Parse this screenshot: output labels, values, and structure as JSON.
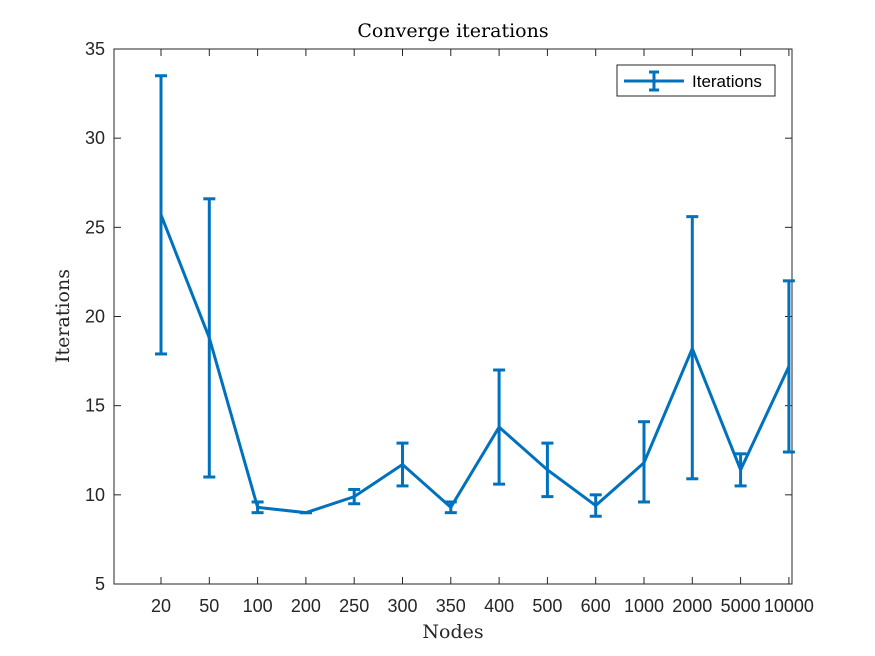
{
  "chart_data": {
    "type": "line",
    "title": "Converge iterations",
    "xlabel": "Nodes",
    "ylabel": "Iterations",
    "categories": [
      "20",
      "50",
      "100",
      "200",
      "250",
      "300",
      "350",
      "400",
      "500",
      "600",
      "1000",
      "2000",
      "5000",
      "10000"
    ],
    "ylim": [
      5,
      35
    ],
    "yticks": [
      5,
      10,
      15,
      20,
      25,
      30,
      35
    ],
    "series": [
      {
        "name": "Iterations",
        "color": "#0072BD",
        "values": [
          25.7,
          18.8,
          9.3,
          9.0,
          9.9,
          11.7,
          9.3,
          13.8,
          11.4,
          9.4,
          11.8,
          18.2,
          11.4,
          17.2
        ],
        "error_low": [
          17.9,
          11.0,
          9.0,
          9.0,
          9.5,
          10.5,
          9.0,
          10.6,
          9.9,
          8.8,
          9.6,
          10.9,
          10.5,
          12.4
        ],
        "error_high": [
          33.5,
          26.6,
          9.6,
          9.0,
          10.3,
          12.9,
          9.6,
          17.0,
          12.9,
          10.0,
          14.1,
          25.6,
          12.3,
          22.0
        ]
      }
    ],
    "legend": {
      "position": "top-right",
      "entries": [
        "Iterations"
      ]
    },
    "grid": false
  }
}
